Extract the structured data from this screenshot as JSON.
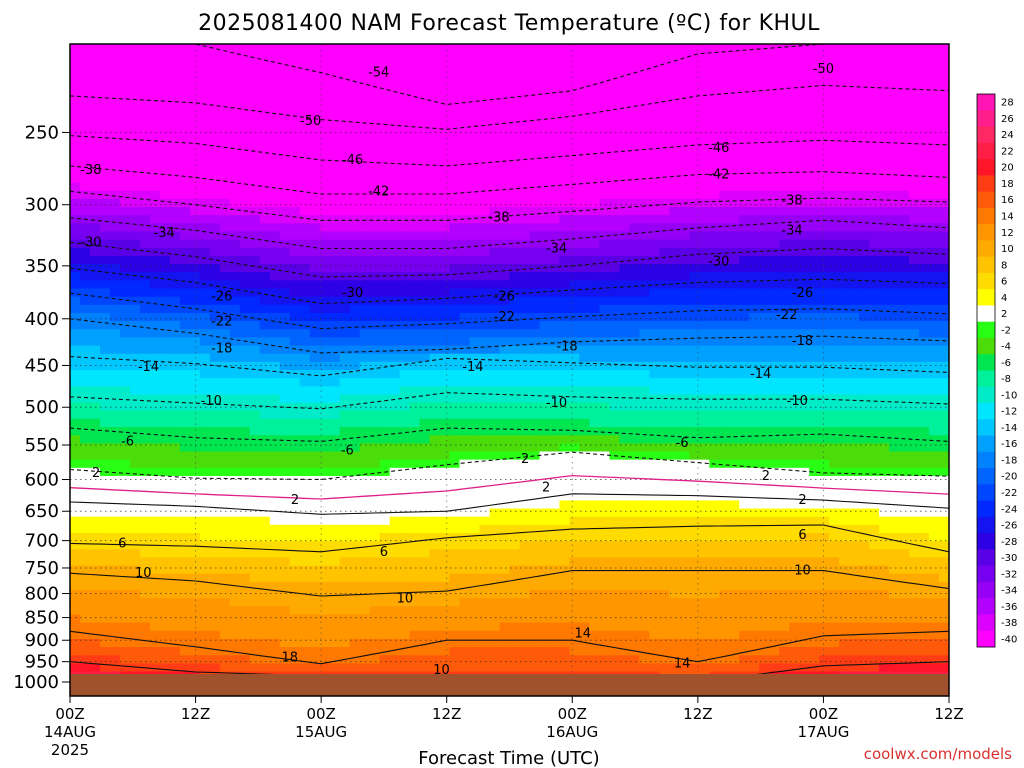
{
  "chart_data": {
    "type": "heatmap",
    "title": "2025081400 NAM Forecast Temperature (ºC) for KHUL",
    "xlabel": "Forecast Time (UTC)",
    "ylabel": "",
    "credit": "coolwx.com/models",
    "x_range_hours": [
      0,
      84
    ],
    "x_ticks": [
      {
        "hour": 0,
        "label": "00Z",
        "date": "14AUG",
        "year": "2025"
      },
      {
        "hour": 12,
        "label": "12Z",
        "date": "",
        "year": ""
      },
      {
        "hour": 24,
        "label": "00Z",
        "date": "15AUG",
        "year": ""
      },
      {
        "hour": 36,
        "label": "12Z",
        "date": "",
        "year": ""
      },
      {
        "hour": 48,
        "label": "00Z",
        "date": "16AUG",
        "year": ""
      },
      {
        "hour": 60,
        "label": "12Z",
        "date": "",
        "year": ""
      },
      {
        "hour": 72,
        "label": "00Z",
        "date": "17AUG",
        "year": ""
      },
      {
        "hour": 84,
        "label": "12Z",
        "date": "",
        "year": ""
      }
    ],
    "y_range_hpa": [
      1000,
      200
    ],
    "y_axis": "pressure (log scale, inverted)",
    "y_ticks": [
      "250",
      "300",
      "350",
      "400",
      "450",
      "500",
      "550",
      "600",
      "650",
      "700",
      "750",
      "800",
      "850",
      "900",
      "950",
      "1000"
    ],
    "grid": "dotted",
    "colorbar_labels": [
      "28",
      "26",
      "24",
      "22",
      "20",
      "18",
      "16",
      "14",
      "12",
      "10",
      "8",
      "6",
      "4",
      "2",
      "-2",
      "-4",
      "-6",
      "-8",
      "-10",
      "-12",
      "-14",
      "-16",
      "-18",
      "-20",
      "-22",
      "-24",
      "-26",
      "-28",
      "-30",
      "-32",
      "-34",
      "-36",
      "-38",
      "-40"
    ],
    "colorbar_colors": [
      "#ff14b4",
      "#ff1e8c",
      "#ff2864",
      "#ff1e46",
      "#ff1428",
      "#ff3c14",
      "#ff5a0a",
      "#ff7800",
      "#ff9600",
      "#ffaa00",
      "#ffc300",
      "#ffdc00",
      "#ffff00",
      "#ffffff",
      "#28ff14",
      "#4bdc0a",
      "#00e650",
      "#00f09b",
      "#00ebc8",
      "#00e6ff",
      "#00c8ff",
      "#00a0ff",
      "#0082ff",
      "#0064ff",
      "#0046ff",
      "#0028ff",
      "#1414f0",
      "#2d00e6",
      "#5a00e6",
      "#7800f0",
      "#9600f5",
      "#b400ff",
      "#dc00ff",
      "#ff00ff"
    ],
    "isotherms": [
      {
        "value": -54,
        "x": [
          0,
          12,
          24,
          36,
          48,
          60,
          72,
          84
        ],
        "y": [
          200,
          200,
          215,
          233,
          225,
          205,
          200,
          200
        ]
      },
      {
        "value": -50,
        "x": [
          0,
          12,
          24,
          36,
          48,
          60,
          72,
          84
        ],
        "y": [
          228,
          232,
          242,
          248,
          240,
          228,
          222,
          225
        ]
      },
      {
        "value": -46,
        "x": [
          0,
          12,
          24,
          36,
          48,
          60,
          72,
          84
        ],
        "y": [
          252,
          257,
          268,
          272,
          265,
          258,
          255,
          258
        ]
      },
      {
        "value": -42,
        "x": [
          0,
          12,
          24,
          36,
          48,
          60,
          72,
          84
        ],
        "y": [
          272,
          280,
          292,
          292,
          285,
          278,
          276,
          280
        ]
      },
      {
        "value": -38,
        "x": [
          0,
          12,
          24,
          36,
          48,
          60,
          72,
          84
        ],
        "y": [
          290,
          300,
          312,
          312,
          305,
          298,
          295,
          298
        ]
      },
      {
        "value": -34,
        "x": [
          0,
          12,
          24,
          36,
          48,
          60,
          72,
          84
        ],
        "y": [
          310,
          320,
          335,
          335,
          327,
          318,
          312,
          318
        ]
      },
      {
        "value": -30,
        "x": [
          0,
          12,
          24,
          36,
          48,
          60,
          72,
          84
        ],
        "y": [
          330,
          342,
          360,
          358,
          350,
          340,
          335,
          340
        ]
      },
      {
        "value": -26,
        "x": [
          0,
          12,
          24,
          36,
          48,
          60,
          72,
          84
        ],
        "y": [
          352,
          365,
          385,
          380,
          372,
          365,
          362,
          366
        ]
      },
      {
        "value": -22,
        "x": [
          0,
          12,
          24,
          36,
          48,
          60,
          72,
          84
        ],
        "y": [
          375,
          390,
          410,
          405,
          398,
          392,
          390,
          395
        ]
      },
      {
        "value": -18,
        "x": [
          0,
          12,
          24,
          36,
          48,
          60,
          72,
          84
        ],
        "y": [
          400,
          415,
          436,
          432,
          424,
          420,
          418,
          423
        ]
      },
      {
        "value": -14,
        "x": [
          0,
          12,
          24,
          36,
          48,
          60,
          72,
          84
        ],
        "y": [
          440,
          448,
          462,
          442,
          447,
          452,
          452,
          458
        ]
      },
      {
        "value": -10,
        "x": [
          0,
          12,
          24,
          36,
          48,
          60,
          72,
          84
        ],
        "y": [
          487,
          495,
          502,
          482,
          487,
          490,
          490,
          496
        ]
      },
      {
        "value": -6,
        "x": [
          0,
          12,
          24,
          36,
          48,
          60,
          72,
          84
        ],
        "y": [
          527,
          540,
          545,
          527,
          530,
          540,
          535,
          545
        ]
      },
      {
        "value": 2,
        "x": [
          0,
          12,
          24,
          36,
          48,
          60,
          72,
          84
        ],
        "y": [
          585,
          598,
          600,
          578,
          560,
          575,
          590,
          595
        ]
      },
      {
        "value": 2,
        "x": [
          0,
          12,
          24,
          36,
          48,
          60,
          72,
          84
        ],
        "y": [
          635,
          642,
          655,
          650,
          622,
          625,
          632,
          645
        ]
      },
      {
        "value": 6,
        "x": [
          0,
          12,
          24,
          36,
          48,
          60,
          72,
          84
        ],
        "y": [
          705,
          710,
          720,
          695,
          680,
          675,
          673,
          720
        ]
      },
      {
        "value": 10,
        "x": [
          0,
          12,
          24,
          36,
          48,
          60,
          72,
          84
        ],
        "y": [
          760,
          775,
          805,
          795,
          755,
          755,
          755,
          790
        ]
      },
      {
        "value": 14,
        "x": [
          0,
          12,
          24,
          36,
          48,
          60,
          72,
          84
        ],
        "y": [
          880,
          915,
          955,
          900,
          900,
          950,
          890,
          880
        ]
      },
      {
        "value": 18,
        "x": [
          0,
          12,
          24,
          36,
          48,
          60,
          72,
          84
        ],
        "y": [
          950,
          975,
          985,
          1000,
          1000,
          1000,
          960,
          950
        ]
      }
    ],
    "contour_labels": [
      {
        "text": "-54",
        "x": 29.5,
        "p": 215
      },
      {
        "text": "-50",
        "x": 72.0,
        "p": 213
      },
      {
        "text": "-50",
        "x": 23.0,
        "p": 243
      },
      {
        "text": "-46",
        "x": 27.0,
        "p": 268
      },
      {
        "text": "-46",
        "x": 62.0,
        "p": 260
      },
      {
        "text": "-42",
        "x": 29.5,
        "p": 290
      },
      {
        "text": "-42",
        "x": 62.0,
        "p": 278
      },
      {
        "text": "-38",
        "x": 2.0,
        "p": 275
      },
      {
        "text": "-38",
        "x": 41.0,
        "p": 310
      },
      {
        "text": "-38",
        "x": 69.0,
        "p": 297
      },
      {
        "text": "-34",
        "x": 9.0,
        "p": 322
      },
      {
        "text": "-34",
        "x": 46.5,
        "p": 335
      },
      {
        "text": "-34",
        "x": 69.0,
        "p": 320
      },
      {
        "text": "-30",
        "x": 2.0,
        "p": 330
      },
      {
        "text": "-30",
        "x": 27.0,
        "p": 375
      },
      {
        "text": "-30",
        "x": 62.0,
        "p": 346
      },
      {
        "text": "-26",
        "x": 14.5,
        "p": 378
      },
      {
        "text": "-26",
        "x": 41.5,
        "p": 378
      },
      {
        "text": "-26",
        "x": 70.0,
        "p": 375
      },
      {
        "text": "-22",
        "x": 14.5,
        "p": 403
      },
      {
        "text": "-22",
        "x": 41.5,
        "p": 398
      },
      {
        "text": "-22",
        "x": 68.5,
        "p": 396
      },
      {
        "text": "-18",
        "x": 14.5,
        "p": 431
      },
      {
        "text": "-18",
        "x": 47.5,
        "p": 429
      },
      {
        "text": "-18",
        "x": 70.0,
        "p": 423
      },
      {
        "text": "-14",
        "x": 7.5,
        "p": 452
      },
      {
        "text": "-14",
        "x": 38.5,
        "p": 452
      },
      {
        "text": "-14",
        "x": 66.0,
        "p": 460
      },
      {
        "text": "-10",
        "x": 13.5,
        "p": 492
      },
      {
        "text": "-10",
        "x": 46.5,
        "p": 495
      },
      {
        "text": "-10",
        "x": 69.5,
        "p": 492
      },
      {
        "text": "-6",
        "x": 5.5,
        "p": 545
      },
      {
        "text": "-6",
        "x": 26.5,
        "p": 558
      },
      {
        "text": "-6",
        "x": 58.5,
        "p": 547
      },
      {
        "text": "2",
        "x": 2.5,
        "p": 590
      },
      {
        "text": "2",
        "x": 43.5,
        "p": 570
      },
      {
        "text": "2",
        "x": 66.5,
        "p": 595
      },
      {
        "text": "2",
        "x": 21.5,
        "p": 632
      },
      {
        "text": "2",
        "x": 45.5,
        "p": 612
      },
      {
        "text": "2",
        "x": 70.0,
        "p": 632
      },
      {
        "text": "6",
        "x": 5.0,
        "p": 705
      },
      {
        "text": "6",
        "x": 30.0,
        "p": 720
      },
      {
        "text": "6",
        "x": 70.0,
        "p": 690
      },
      {
        "text": "10",
        "x": 7.0,
        "p": 760
      },
      {
        "text": "10",
        "x": 32.0,
        "p": 810
      },
      {
        "text": "10",
        "x": 70.0,
        "p": 755
      },
      {
        "text": "14",
        "x": 49.0,
        "p": 885
      },
      {
        "text": "14",
        "x": 58.5,
        "p": 955
      },
      {
        "text": "18",
        "x": 21.0,
        "p": 940
      },
      {
        "text": "10",
        "x": 35.5,
        "p": 970
      }
    ]
  }
}
